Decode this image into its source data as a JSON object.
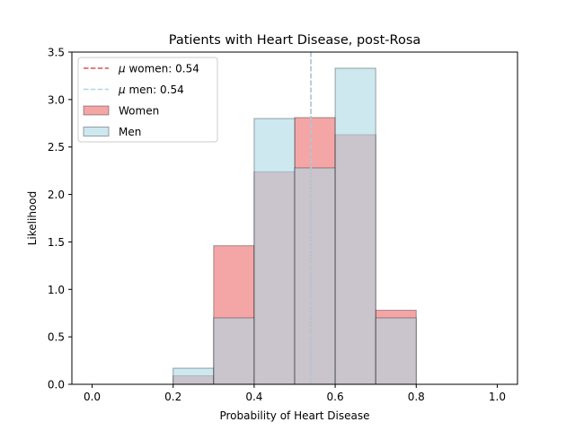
{
  "chart_data": {
    "type": "histogram",
    "title": "Patients with Heart Disease, post-Rosa",
    "xlabel": "Probability of Heart Disease",
    "ylabel": "Likelihood",
    "xlim": [
      -0.05,
      1.05
    ],
    "ylim": [
      0,
      3.5
    ],
    "xticks": [
      0.0,
      0.2,
      0.4,
      0.6,
      0.8,
      1.0
    ],
    "xtick_labels": [
      "0.0",
      "0.2",
      "0.4",
      "0.6",
      "0.8",
      "1.0"
    ],
    "yticks": [
      0.0,
      0.5,
      1.0,
      1.5,
      2.0,
      2.5,
      3.0,
      3.5
    ],
    "ytick_labels": [
      "0.0",
      "0.5",
      "1.0",
      "1.5",
      "2.0",
      "2.5",
      "3.0",
      "3.5"
    ],
    "bin_edges": [
      0.0,
      0.1,
      0.2,
      0.3,
      0.4,
      0.5,
      0.6,
      0.7,
      0.8,
      0.9,
      1.0
    ],
    "series": [
      {
        "name": "Women",
        "values": [
          0,
          0,
          0.09,
          1.46,
          2.24,
          2.81,
          2.63,
          0.78,
          0,
          0
        ],
        "color": "#f08080",
        "alpha": 0.7
      },
      {
        "name": "Men",
        "values": [
          0,
          0,
          0.17,
          0.7,
          2.8,
          2.28,
          3.33,
          0.7,
          0,
          0
        ],
        "color": "#add8e6",
        "alpha": 0.6
      }
    ],
    "mean_lines": [
      {
        "label": "μ women: 0.54",
        "x": 0.54,
        "color": "#e05252",
        "style": "dashed"
      },
      {
        "label": "μ men: 0.54",
        "x": 0.54,
        "color": "#add8e6",
        "style": "dashed"
      }
    ],
    "legend": {
      "position": "top-left",
      "entries": [
        {
          "kind": "line",
          "mu": "μ",
          "text": " women: 0.54",
          "color": "#e05252"
        },
        {
          "kind": "line",
          "mu": "μ",
          "text": " men: 0.54",
          "color": "#add8e6"
        },
        {
          "kind": "patch",
          "text": "Women",
          "color": "#f08080",
          "alpha": 0.7
        },
        {
          "kind": "patch",
          "text": "Men",
          "color": "#add8e6",
          "alpha": 0.6
        }
      ]
    }
  }
}
